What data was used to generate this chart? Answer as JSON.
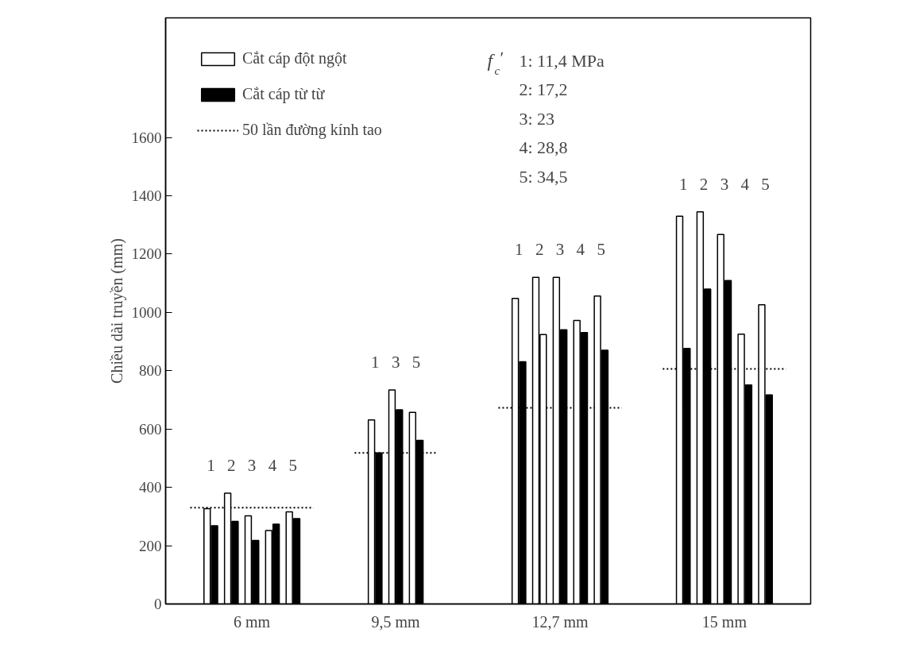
{
  "chart_data": {
    "type": "bar",
    "ylabel": "Chiều dài truyền (mm)",
    "categories": [
      null,
      "1",
      "2",
      "3",
      "4",
      "5",
      null,
      null,
      null,
      "1",
      "3",
      "5",
      null,
      null,
      null,
      null,
      "1",
      "2",
      "3",
      "4",
      "5",
      null,
      null,
      null,
      "1",
      "2",
      "3",
      "4",
      "5",
      null
    ],
    "ylim": [
      0,
      2010
    ],
    "yticks": [
      0,
      200,
      400,
      600,
      800,
      1000,
      1200,
      1400,
      1600
    ],
    "grid": false,
    "legend": "top left",
    "series": [
      {
        "name": "Cắt cáp đột ngột",
        "color": "#ffffff",
        "values": [
          null,
          327,
          380,
          302,
          252,
          316,
          null,
          null,
          null,
          631,
          734,
          657,
          null,
          null,
          null,
          null,
          1048,
          1120,
          1120,
          972,
          1056,
          null,
          null,
          null,
          1330,
          1345,
          1267,
          925,
          1026,
          null
        ]
      },
      {
        "name": "Cắt cáp từ từ",
        "colors": [
          null,
          "#000000",
          "#000000",
          "#000000",
          "#000000",
          "#000000",
          null,
          null,
          null,
          "#000000",
          "#000000",
          "#000000",
          null,
          null,
          null,
          null,
          "#000000",
          "#ffffff",
          "#000000",
          "#000000",
          "#000000",
          null,
          null,
          null,
          "#000000",
          "#000000",
          "#000000",
          "#000000",
          "#000000",
          null
        ],
        "values": [
          null,
          268,
          283,
          218,
          274,
          293,
          null,
          null,
          null,
          518,
          666,
          561,
          null,
          null,
          null,
          null,
          831,
          924,
          940,
          931,
          870,
          null,
          null,
          null,
          876,
          1080,
          1109,
          751,
          717,
          null
        ]
      },
      {
        "name": "50 lần đường kính tao",
        "type": "line",
        "color": "#000000",
        "line_style": "dotted",
        "values": [
          330,
          330,
          330,
          330,
          330,
          330,
          330,
          null,
          518,
          518,
          518,
          518,
          518,
          null,
          null,
          673,
          673,
          673,
          673,
          673,
          673,
          673,
          null,
          806,
          806,
          806,
          806,
          806,
          806,
          806
        ]
      }
    ],
    "annotations": [
      "6 mm",
      "9,5 mm",
      "12,7 mm",
      "15 mm",
      "f$_{c}$′ 1: 11,4 MPa",
      "2: 17,2",
      "3: 23",
      "4: 28,8",
      "5: 34,5"
    ]
  }
}
